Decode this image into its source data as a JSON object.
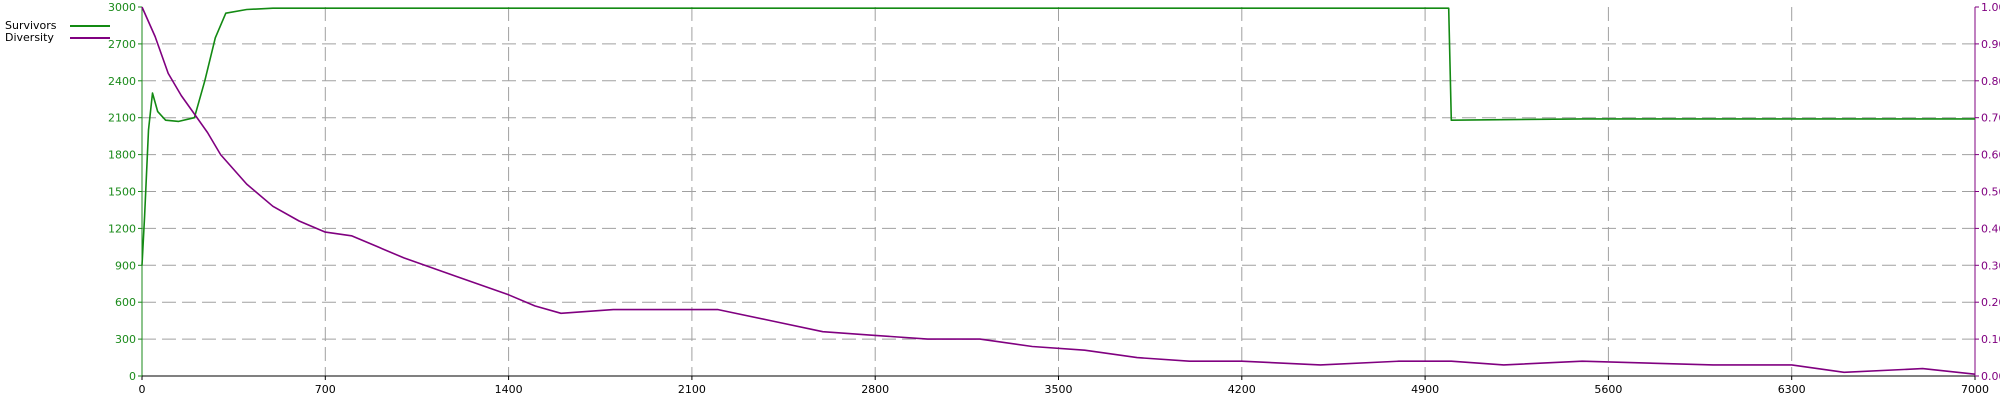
{
  "legend": [
    {
      "name": "Survivors",
      "color": "#138a13"
    },
    {
      "name": "Diversity",
      "color": "#800080"
    }
  ],
  "chart_data": {
    "type": "line",
    "title": "",
    "xlabel": "",
    "ylabel": "",
    "xlim": [
      0,
      7000
    ],
    "ylim_left": [
      0,
      3000
    ],
    "ylim_right": [
      0,
      1.0
    ],
    "grid": true,
    "legend_position": "top-left",
    "x_ticks": [
      "0",
      "700",
      "1400",
      "2100",
      "2800",
      "3500",
      "4200",
      "4900",
      "5600",
      "6300",
      "7000"
    ],
    "y_left_ticks": [
      "0",
      "300",
      "600",
      "900",
      "1200",
      "1500",
      "1800",
      "2100",
      "2400",
      "2700",
      "3000"
    ],
    "y_right_ticks": [
      "0.00",
      "0.10",
      "0.20",
      "0.30",
      "0.40",
      "0.50",
      "0.60",
      "0.70",
      "0.80",
      "0.90",
      "1.00"
    ],
    "series": [
      {
        "name": "Survivors",
        "axis": "left",
        "color": "#138a13",
        "x": [
          0,
          10,
          25,
          40,
          60,
          90,
          140,
          200,
          240,
          280,
          320,
          400,
          500,
          1000,
          2000,
          3000,
          4000,
          4990,
          5000,
          5500,
          6000,
          6500,
          7000
        ],
        "y": [
          900,
          1300,
          2000,
          2300,
          2150,
          2080,
          2070,
          2100,
          2400,
          2750,
          2950,
          2980,
          2990,
          2990,
          2990,
          2990,
          2990,
          2990,
          2080,
          2090,
          2090,
          2090,
          2090
        ]
      },
      {
        "name": "Diversity",
        "axis": "right",
        "color": "#800080",
        "x": [
          0,
          50,
          100,
          150,
          200,
          250,
          300,
          400,
          500,
          600,
          700,
          800,
          900,
          1000,
          1200,
          1400,
          1500,
          1600,
          1800,
          2000,
          2200,
          2400,
          2600,
          2800,
          3000,
          3200,
          3400,
          3600,
          3800,
          4000,
          4200,
          4500,
          4800,
          5000,
          5200,
          5500,
          6000,
          6300,
          6500,
          6800,
          7000
        ],
        "y": [
          1.0,
          0.92,
          0.82,
          0.76,
          0.71,
          0.66,
          0.6,
          0.52,
          0.46,
          0.42,
          0.39,
          0.38,
          0.35,
          0.32,
          0.27,
          0.22,
          0.19,
          0.17,
          0.18,
          0.18,
          0.18,
          0.15,
          0.12,
          0.11,
          0.1,
          0.1,
          0.08,
          0.07,
          0.05,
          0.04,
          0.04,
          0.03,
          0.04,
          0.04,
          0.03,
          0.04,
          0.03,
          0.03,
          0.01,
          0.02,
          0.005
        ]
      }
    ]
  }
}
